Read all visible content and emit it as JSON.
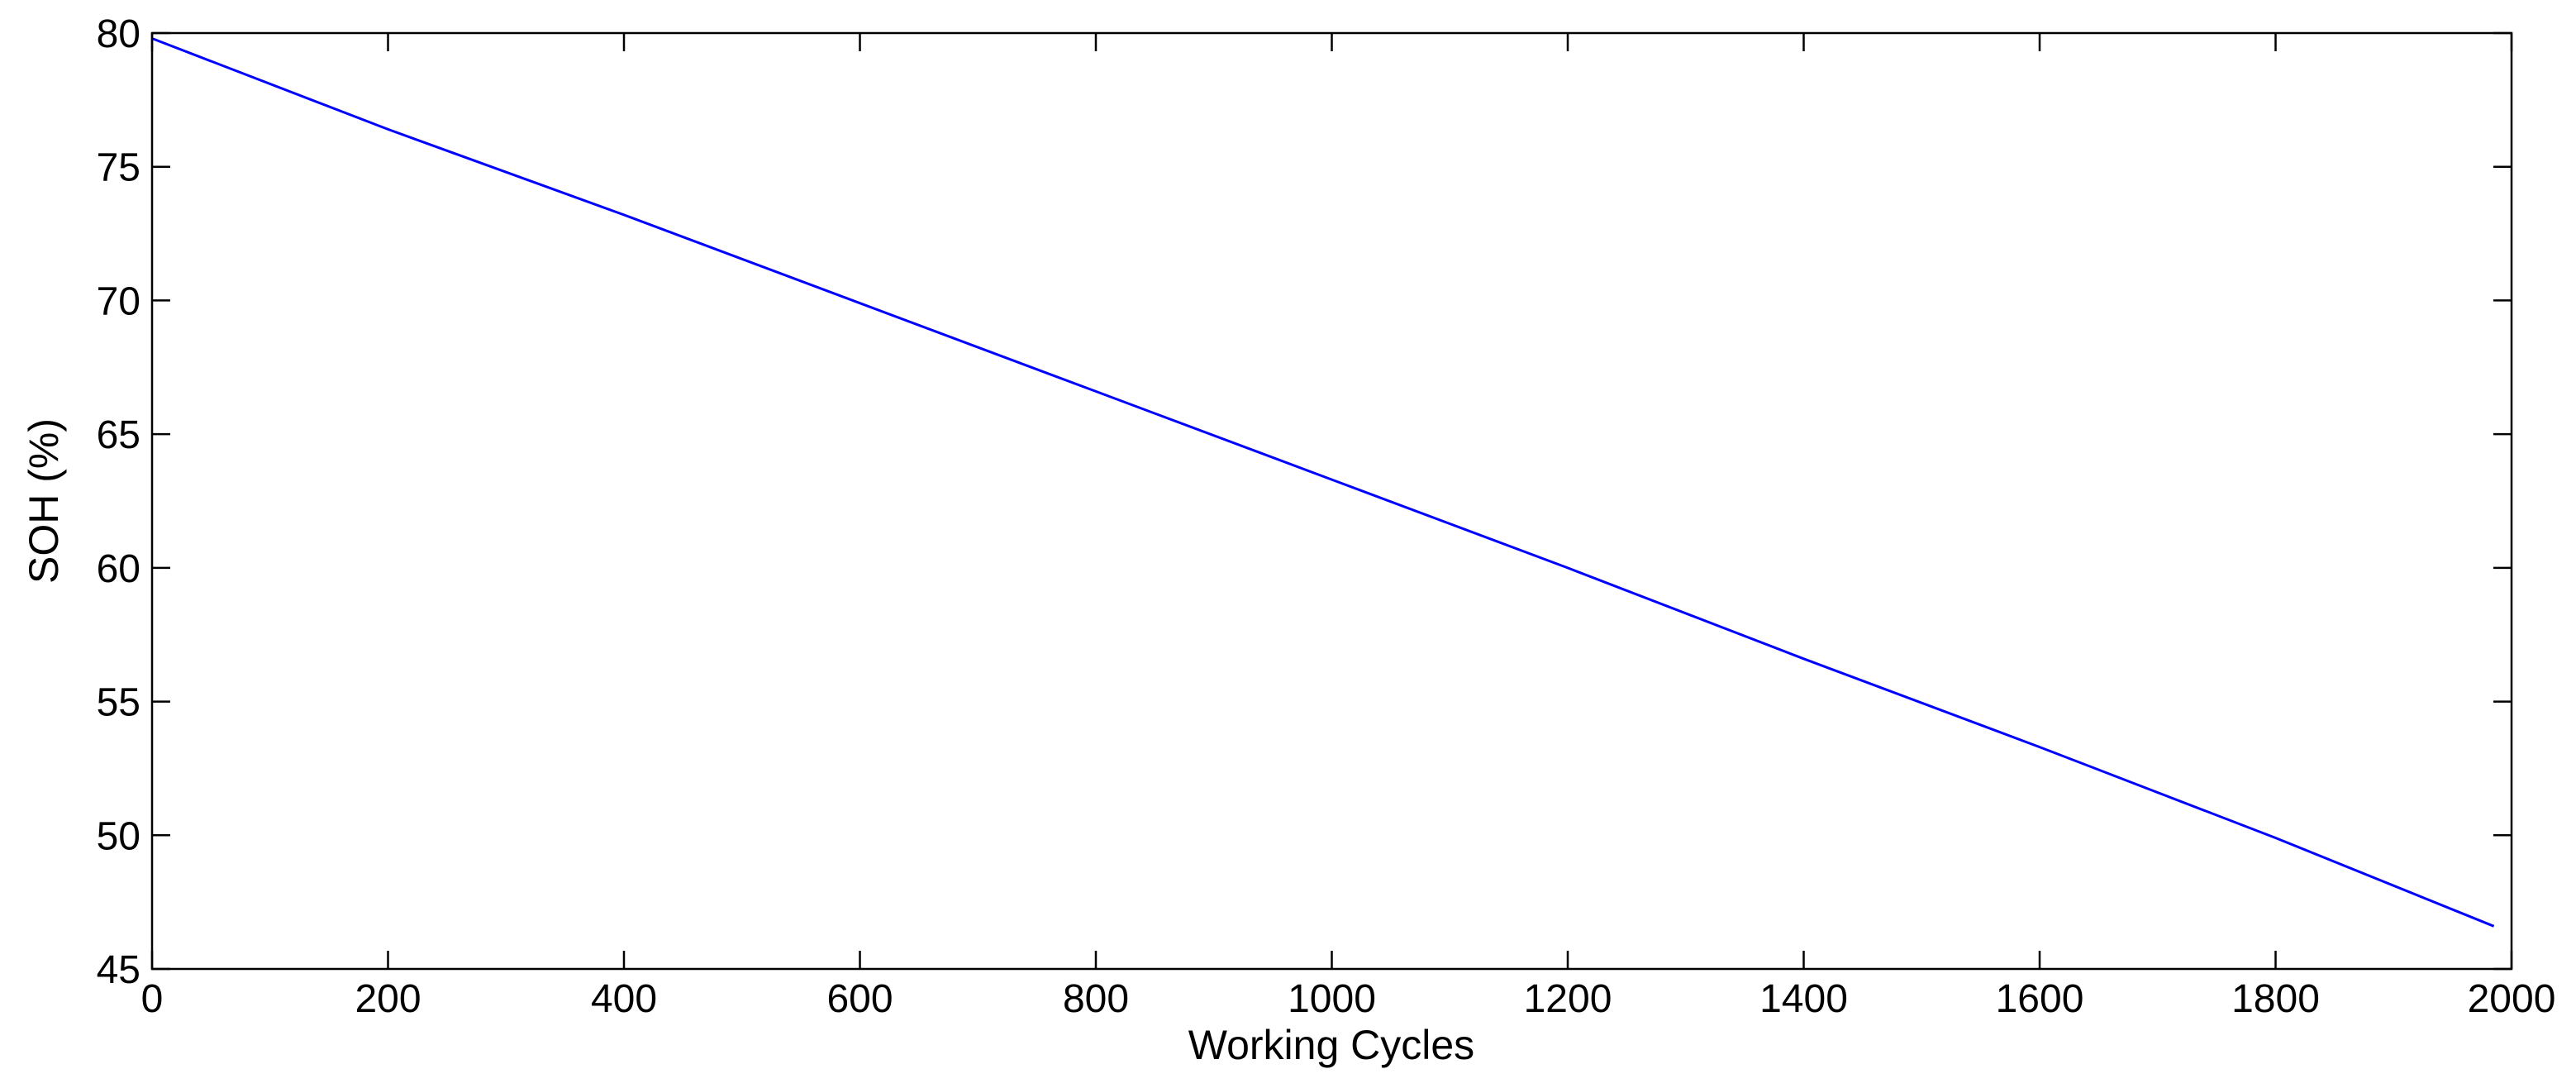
{
  "chart_data": {
    "type": "line",
    "title": "",
    "xlabel": "Working Cycles",
    "ylabel": "SOH (%)",
    "xlim": [
      0,
      2000
    ],
    "ylim": [
      45,
      80
    ],
    "xticks": [
      0,
      200,
      400,
      600,
      800,
      1000,
      1200,
      1400,
      1600,
      1800,
      2000
    ],
    "yticks": [
      45,
      50,
      55,
      60,
      65,
      70,
      75,
      80
    ],
    "x_tick_labels": [
      "0",
      "200",
      "400",
      "600",
      "800",
      "1000",
      "1200",
      "1400",
      "1600",
      "1800",
      "2000"
    ],
    "y_tick_labels": [
      "45",
      "50",
      "55",
      "60",
      "65",
      "70",
      "75",
      "80"
    ],
    "grid": false,
    "series": [
      {
        "color": "#0000ff",
        "x": [
          0,
          200,
          400,
          600,
          800,
          1000,
          1200,
          1400,
          1600,
          1800,
          1985
        ],
        "y": [
          79.8,
          76.4,
          73.2,
          69.9,
          66.6,
          63.3,
          60.0,
          56.6,
          53.3,
          49.9,
          46.6
        ]
      }
    ]
  }
}
